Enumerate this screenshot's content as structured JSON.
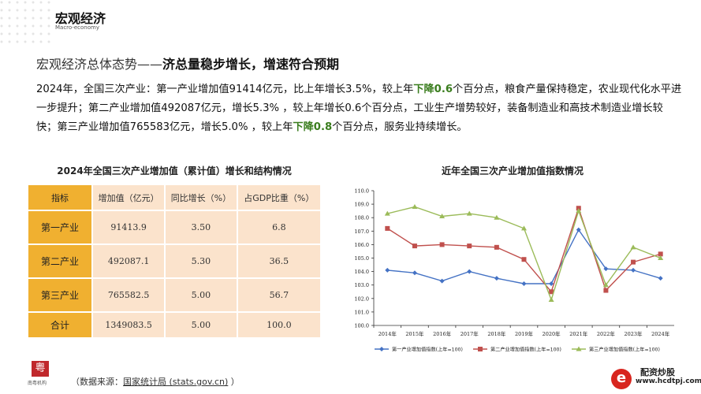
{
  "header": {
    "title": "宏观经济",
    "subtitle": "Macro-economy"
  },
  "headline": {
    "prefix": "宏观经济总体态势——",
    "main": "济总量稳步增长，增速符合预期"
  },
  "body": {
    "p1": "2024年，全国三次产业：第一产业增加值91414亿元，比上年增长3.5%，较上年",
    "hl1": "下降0.6",
    "p2": "个百分点，粮食产量保持稳定，农业现代化水平进一步提升；第二产业增加值492087亿元，增长5.3% ，较上年增长0.6个百分点，工业生产增势较好，装备制造业和高技术制造业增长较快；第三产业增加值765583亿元，增长5.0% ，较上年",
    "hl2": "下降0.8",
    "p3": "个百分点，服务业持续增长。",
    "highlight_color": "#3a7d1e"
  },
  "table": {
    "title": "2024年全国三次产业增加值（累计值）增长和结构情况",
    "headers": [
      "指标",
      "增加值（亿元）",
      "同比增长（%）",
      "占GDP比重（%）"
    ],
    "rows": [
      [
        "第一产业",
        "91413.9",
        "3.50",
        "6.8"
      ],
      [
        "第二产业",
        "492087.1",
        "5.30",
        "36.5"
      ],
      [
        "第三产业",
        "765582.5",
        "5.00",
        "56.7"
      ],
      [
        "合计",
        "1349083.5",
        "5.00",
        "100.0"
      ]
    ]
  },
  "chart_data": {
    "type": "line",
    "title": "近年全国三次产业增加值指数情况",
    "categories": [
      "2014年",
      "2015年",
      "2016年",
      "2017年",
      "2018年",
      "2019年",
      "2020年",
      "2021年",
      "2022年",
      "2023年",
      "2024年"
    ],
    "ylim": [
      100,
      110
    ],
    "yticks": [
      "100.0",
      "101.0",
      "102.0",
      "103.0",
      "104.0",
      "105.0",
      "106.0",
      "107.0",
      "108.0",
      "109.0",
      "110.0"
    ],
    "grid": false,
    "legend": "bottom",
    "series": [
      {
        "name": "第一产业增加值指数(上年=100)",
        "color": "#4472c4",
        "marker": "diamond",
        "values": [
          104.1,
          103.9,
          103.3,
          104.0,
          103.5,
          103.1,
          103.1,
          107.1,
          104.2,
          104.1,
          103.5
        ]
      },
      {
        "name": "第二产业增加值指数(上年=100)",
        "color": "#c0504d",
        "marker": "square",
        "values": [
          107.2,
          105.9,
          106.0,
          105.9,
          105.8,
          104.9,
          102.5,
          108.7,
          102.6,
          104.7,
          105.3
        ]
      },
      {
        "name": "第三产业增加值指数(上年=100)",
        "color": "#9bbb59",
        "marker": "triangle",
        "values": [
          108.3,
          108.8,
          108.1,
          108.3,
          108.0,
          107.2,
          101.9,
          108.5,
          103.0,
          105.8,
          105.0
        ]
      }
    ]
  },
  "footer": {
    "org": "南粤机构",
    "source_prefix": "（数据来源：",
    "source_link": "国家统计局 (stats.gov.cn)",
    "source_suffix": " ）",
    "right_name": "配资炒股",
    "right_url": "www.hcdtpj.com",
    "right_logo": "e"
  }
}
